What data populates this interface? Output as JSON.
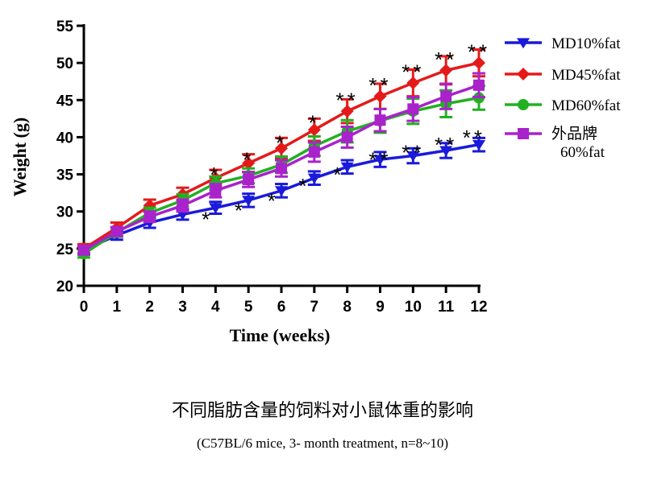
{
  "chart_data": {
    "type": "line",
    "xlabel": "Time (weeks)",
    "ylabel": "Weight (g)",
    "x": [
      0,
      1,
      2,
      3,
      4,
      5,
      6,
      7,
      8,
      9,
      10,
      11,
      12
    ],
    "xlim": [
      0,
      12
    ],
    "ylim": [
      20,
      55
    ],
    "yticks": [
      20,
      25,
      30,
      35,
      40,
      45,
      50,
      55
    ],
    "grid": false,
    "legend_position": "right",
    "series": [
      {
        "name": "MD10%fat",
        "color": "#1a1adb",
        "marker": "triangle-down",
        "values": [
          24.8,
          26.8,
          28.5,
          29.6,
          30.5,
          31.5,
          32.8,
          34.5,
          36.0,
          37.0,
          37.5,
          38.2,
          39.0
        ],
        "errors": [
          0.6,
          0.6,
          0.7,
          0.7,
          0.8,
          0.9,
          0.9,
          0.9,
          0.9,
          1.0,
          1.0,
          1.0,
          0.9
        ]
      },
      {
        "name": "MD45%fat",
        "color": "#e41a1a",
        "marker": "diamond",
        "values": [
          25.0,
          27.8,
          30.8,
          32.3,
          34.5,
          36.5,
          38.5,
          41.0,
          43.5,
          45.5,
          47.3,
          49.0,
          50.0
        ],
        "errors": [
          0.6,
          0.7,
          0.8,
          0.9,
          1.1,
          1.2,
          1.4,
          1.5,
          1.6,
          1.7,
          1.8,
          1.9,
          1.8
        ]
      },
      {
        "name": "MD60%fat",
        "color": "#22b022",
        "marker": "circle",
        "values": [
          24.3,
          27.2,
          29.8,
          31.5,
          33.8,
          34.8,
          36.3,
          38.8,
          40.8,
          42.2,
          43.5,
          44.5,
          45.3
        ],
        "errors": [
          0.5,
          0.6,
          0.7,
          0.8,
          0.9,
          1.0,
          1.1,
          1.3,
          1.5,
          1.6,
          1.7,
          1.8,
          1.6
        ]
      },
      {
        "name_lines": [
          "外品牌",
          "60%fat"
        ],
        "color": "#aa22cc",
        "marker": "square",
        "values": [
          24.8,
          27.3,
          29.3,
          30.8,
          32.8,
          34.3,
          35.8,
          38.0,
          40.0,
          42.3,
          43.8,
          45.5,
          47.0
        ],
        "errors": [
          0.5,
          0.6,
          0.7,
          0.8,
          0.9,
          1.0,
          1.1,
          1.3,
          1.4,
          1.5,
          1.6,
          1.7,
          1.6
        ]
      }
    ],
    "annotations": [
      {
        "text": "*",
        "x": 4,
        "y": 35.5
      },
      {
        "text": "*",
        "x": 5,
        "y": 37.5
      },
      {
        "text": "*",
        "x": 6,
        "y": 39.8
      },
      {
        "text": "*",
        "x": 7,
        "y": 42.5
      },
      {
        "text": "**",
        "x": 8,
        "y": 45.5
      },
      {
        "text": "**",
        "x": 9,
        "y": 47.5
      },
      {
        "text": "**",
        "x": 10,
        "y": 49.3
      },
      {
        "text": "**",
        "x": 11,
        "y": 51.0
      },
      {
        "text": "**",
        "x": 12,
        "y": 52.0
      },
      {
        "text": "*",
        "x": 3.75,
        "y": 29.5
      },
      {
        "text": "*",
        "x": 4.75,
        "y": 30.7
      },
      {
        "text": "*",
        "x": 5.75,
        "y": 32.0
      },
      {
        "text": "*",
        "x": 6.7,
        "y": 34.0
      },
      {
        "text": "*",
        "x": 7.75,
        "y": 35.5
      },
      {
        "text": "**",
        "x": 9.0,
        "y": 37.5
      },
      {
        "text": "**",
        "x": 10.0,
        "y": 38.5
      },
      {
        "text": "**",
        "x": 11.0,
        "y": 39.5
      },
      {
        "text": "**",
        "x": 11.85,
        "y": 40.5
      }
    ]
  },
  "caption": {
    "title": "不同脂肪含量的饲料对小鼠体重的影响",
    "subtitle": "(C57BL/6  mice, 3- month treatment, n=8~10)"
  }
}
